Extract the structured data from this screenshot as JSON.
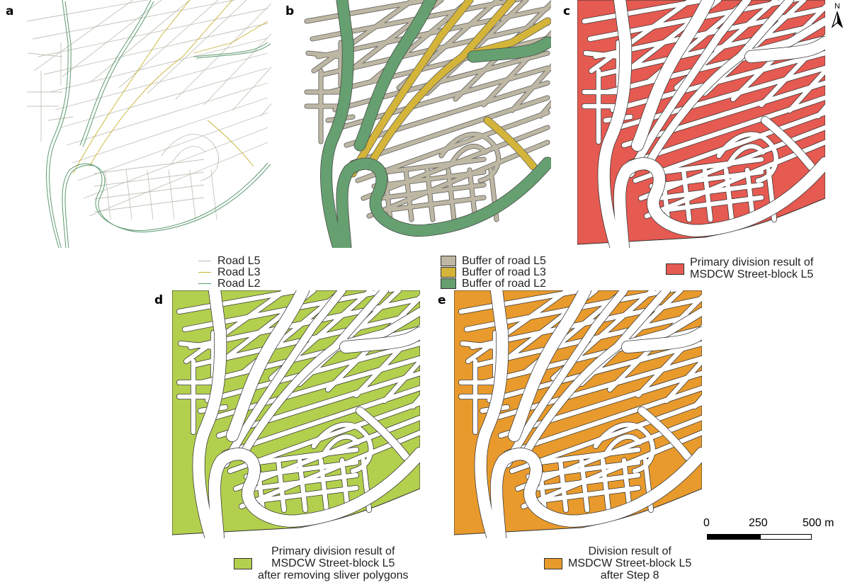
{
  "panels": {
    "a": {
      "letter": "a",
      "legend": [
        {
          "label": "Road L5",
          "color": "#b8b8b0"
        },
        {
          "label": "Road L3",
          "color": "#c8b234"
        },
        {
          "label": "Road L2",
          "color": "#5e9a70"
        }
      ]
    },
    "b": {
      "letter": "b",
      "legend": [
        {
          "label": "Buffer of road L5",
          "color": "#bdb7a4"
        },
        {
          "label": "Buffer of road L3",
          "color": "#d4b53a"
        },
        {
          "label": "Buffer of road L2",
          "color": "#66a070"
        }
      ]
    },
    "c": {
      "letter": "c",
      "fill": "#e55a51",
      "legend_lines": [
        "Primary division result of",
        "MSDCW Street-block L5"
      ]
    },
    "d": {
      "letter": "d",
      "fill": "#b3cf4e",
      "legend_lines": [
        "Primary division result of",
        "MSDCW Street-block L5",
        "after removing sliver polygons"
      ]
    },
    "e": {
      "letter": "e",
      "fill": "#e89a2c",
      "legend_lines": [
        "Division result of",
        "MSDCW Street-block L5",
        "after Step 8"
      ]
    }
  },
  "scale_bar": {
    "labels": [
      "0",
      "250",
      "500 m"
    ]
  },
  "north_arrow": {
    "label": "N"
  }
}
